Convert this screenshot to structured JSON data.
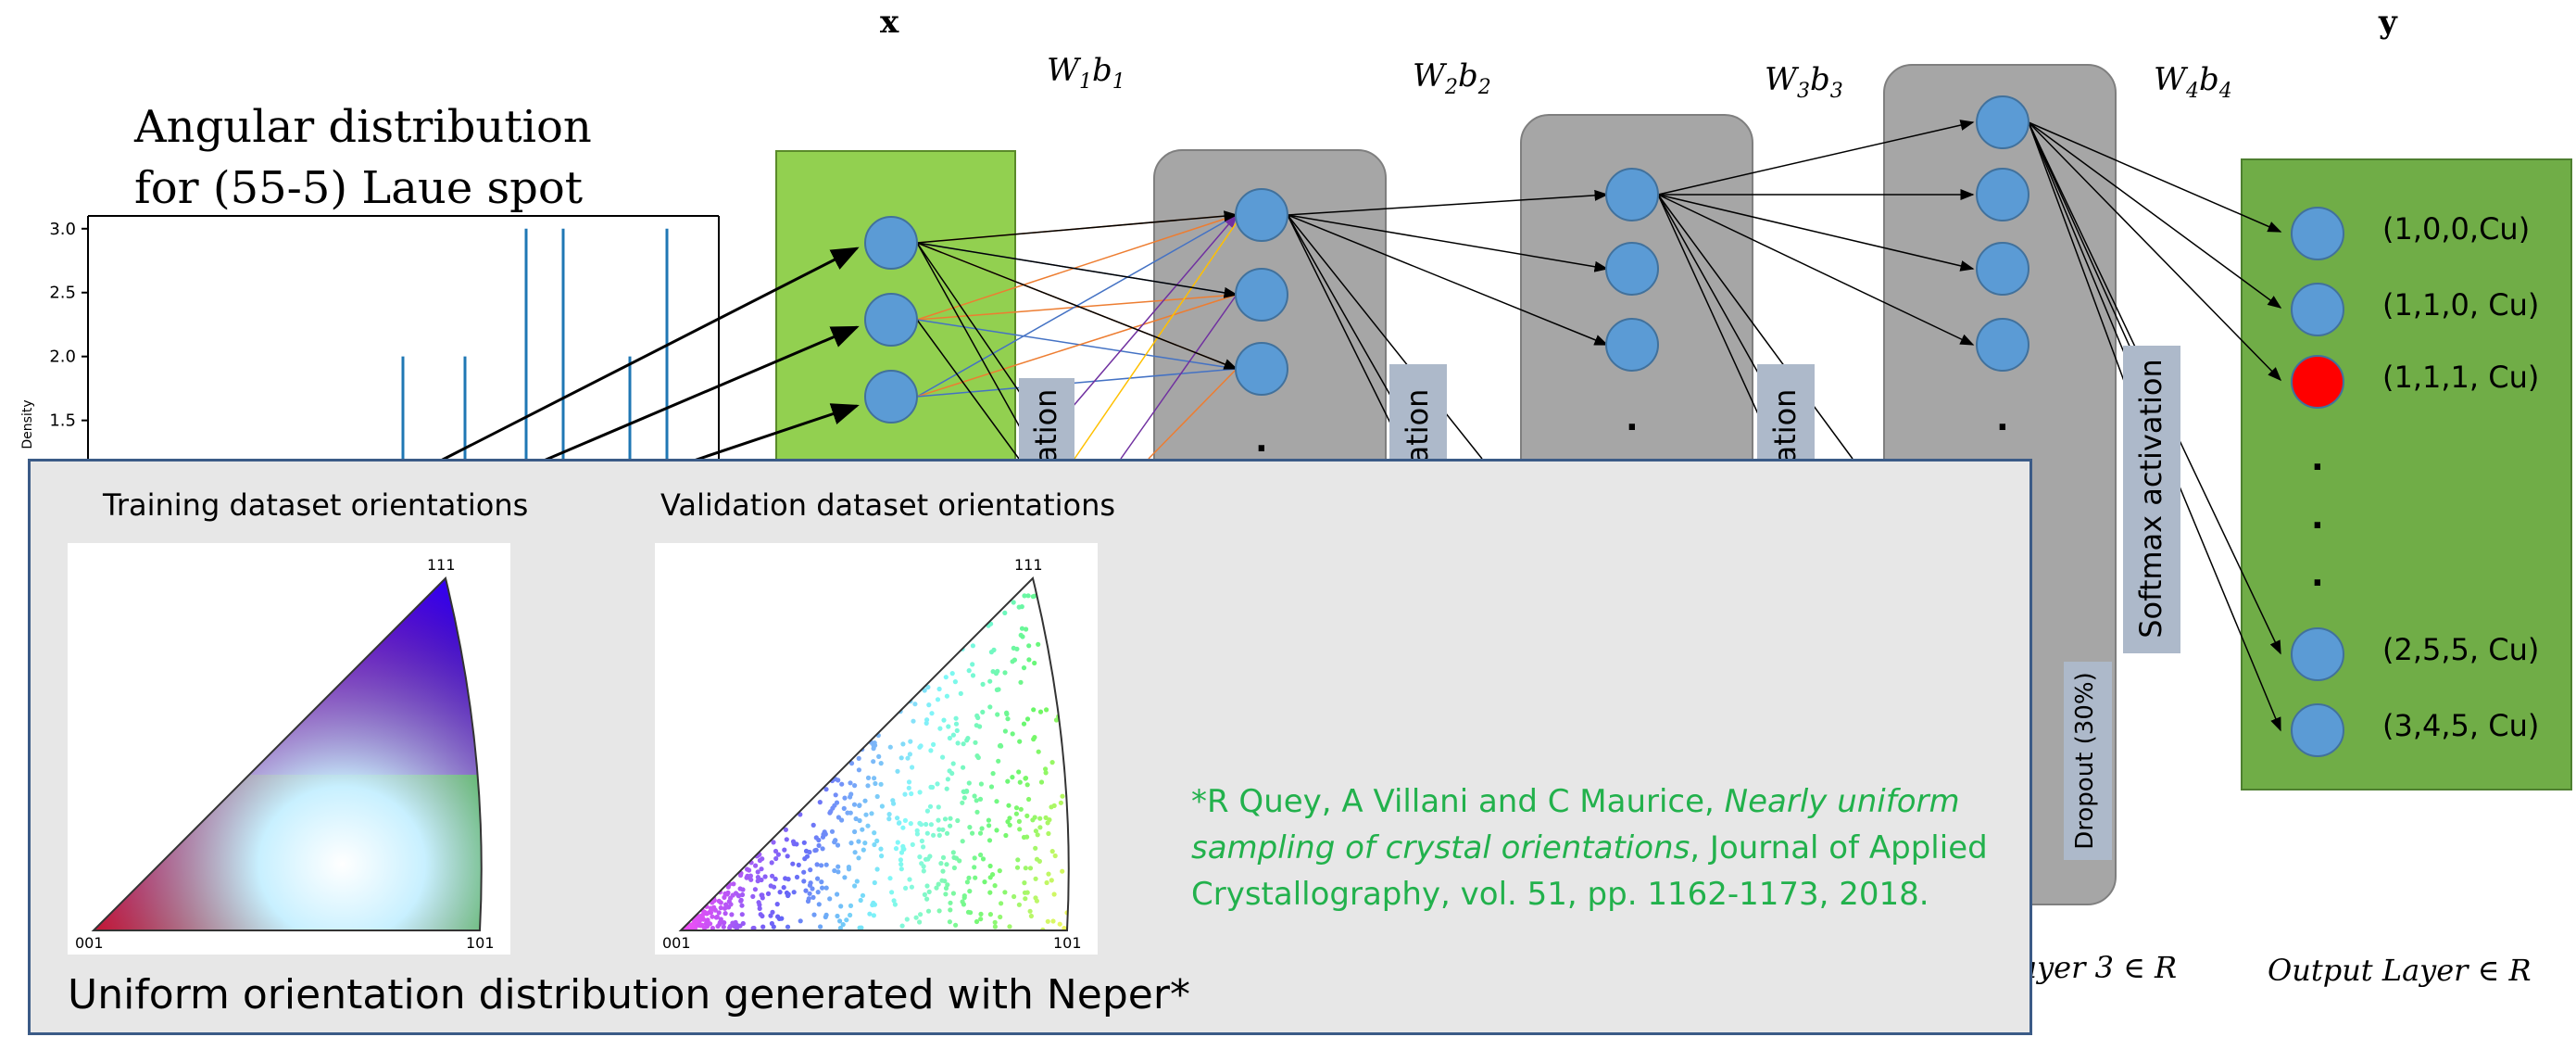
{
  "network": {
    "input_var": "x",
    "output_var": "y",
    "weights": [
      {
        "w": "W",
        "wi": "1",
        "b": "b",
        "bi": "1"
      },
      {
        "w": "W",
        "wi": "2",
        "b": "b",
        "bi": "2"
      },
      {
        "w": "W",
        "wi": "3",
        "b": "b",
        "bi": "3"
      },
      {
        "w": "W",
        "wi": "4",
        "b": "b",
        "bi": "4"
      }
    ],
    "activation_partial": "ation",
    "dropout_label": "Dropout (30%)",
    "softmax_label": "Softmax activation",
    "layer3_label": "ayer 3 ∈ R",
    "output_layer_label": "Output Layer ∈ R",
    "dot": "."
  },
  "outputs": [
    "(1,0,0,Cu)",
    "(1,1,0, Cu)",
    "(1,1,1, Cu)",
    "(2,5,5, Cu)",
    "(3,4,5, Cu)"
  ],
  "colors": {
    "input_layer": "#92d050",
    "hidden_layer": "#a6a6a6",
    "output_layer": "#70ad47",
    "neuron": "#5b9bd5",
    "neuron_active": "#ff0000",
    "label_box": "#adb9ca",
    "histogram": "#1f77b4",
    "overlay_bg": "#e7e7e7",
    "reference_text": "#22b14c"
  },
  "histogram": {
    "title_line1": "Angular distribution",
    "title_line2": "for (55-5) Laue spot",
    "ylabel": "Density",
    "yticks": [
      "3.0",
      "2.5",
      "2.0",
      "1.5"
    ],
    "ylim": [
      1.2,
      3.1
    ],
    "bars": [
      2.0,
      2.0,
      3.0,
      3.0,
      2.0,
      3.0
    ]
  },
  "overlay": {
    "training_title": "Training dataset orientations",
    "validation_title": "Validation dataset orientations",
    "corner_top": "111",
    "corner_left": "001",
    "corner_right": "101",
    "reference_prefix": "*R Quey, A Villani and C Maurice, ",
    "reference_title": "Nearly uniform sampling of crystal orientations",
    "reference_suffix": ", Journal of Applied Crystallography, vol. 51, pp. 1162-1173, 2018.",
    "caption": "Uniform orientation distribution generated with Neper*"
  }
}
